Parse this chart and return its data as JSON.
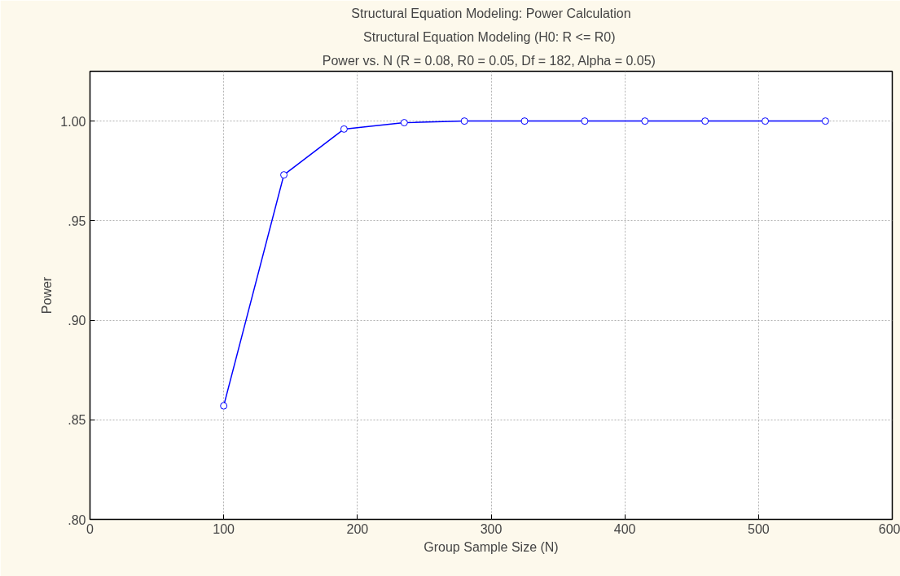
{
  "chart_data": {
    "type": "line",
    "title": "Structural Equation Modeling: Power Calculation",
    "subtitle": "Structural Equation Modeling (H0:  R <= R0)",
    "annotations": [
      "Power vs. N (R = 0.08,  R0 = 0.05, Df = 182, Alpha = 0.05)"
    ],
    "xlabel": "Group Sample Size (N)",
    "ylabel": "Power",
    "x": [
      100,
      145,
      190,
      235,
      280,
      325,
      370,
      415,
      460,
      505,
      550
    ],
    "series": [
      {
        "color": "#0000ff",
        "values": [
          0.857,
          0.973,
          0.996,
          0.9992,
          1.0,
          1.0,
          1.0,
          1.0,
          1.0,
          1.0,
          1.0
        ]
      }
    ],
    "xlim": [
      0,
      600
    ],
    "xticks": [
      0,
      100,
      200,
      300,
      400,
      500,
      600
    ],
    "ylim": [
      0.8,
      1.025
    ],
    "yticks": [
      {
        "value": 0.8,
        "label": ".80"
      },
      {
        "value": 0.85,
        "label": ".85"
      },
      {
        "value": 0.9,
        "label": ".90"
      },
      {
        "value": 0.95,
        "label": ".95"
      },
      {
        "value": 1.0,
        "label": "1.00"
      }
    ],
    "grid": true,
    "marker": "circle",
    "line_style": "solid"
  }
}
